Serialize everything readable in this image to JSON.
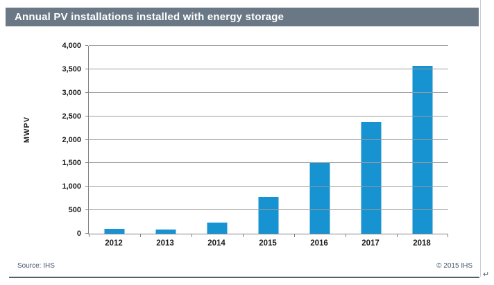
{
  "header": {
    "title": "Annual PV installations installed with energy storage"
  },
  "chart_data": {
    "type": "bar",
    "title": "Annual PV installations installed with energy storage",
    "categories": [
      "2012",
      "2013",
      "2014",
      "2015",
      "2016",
      "2017",
      "2018"
    ],
    "values": [
      100,
      85,
      230,
      780,
      1500,
      2370,
      3570
    ],
    "xlabel": "",
    "ylabel": "MWPV",
    "ylim": [
      0,
      4000
    ],
    "ytick_step": 500,
    "grid": "horizontal",
    "legend_position": "none",
    "bar_color": "#1793D1"
  },
  "footer": {
    "source": "Source: IHS",
    "copyright": "© 2015 IHS",
    "return_mark": "↵"
  },
  "colors": {
    "header_bg": "#6A7885",
    "header_text": "#FFFFFF",
    "bar": "#1793D1",
    "gridline": "#9B9B9B",
    "axis": "#808080",
    "tick_text": "#1A1A1A",
    "footer_text": "#44546A",
    "rule": "#566069",
    "frame_border": "#C8CCD0"
  }
}
